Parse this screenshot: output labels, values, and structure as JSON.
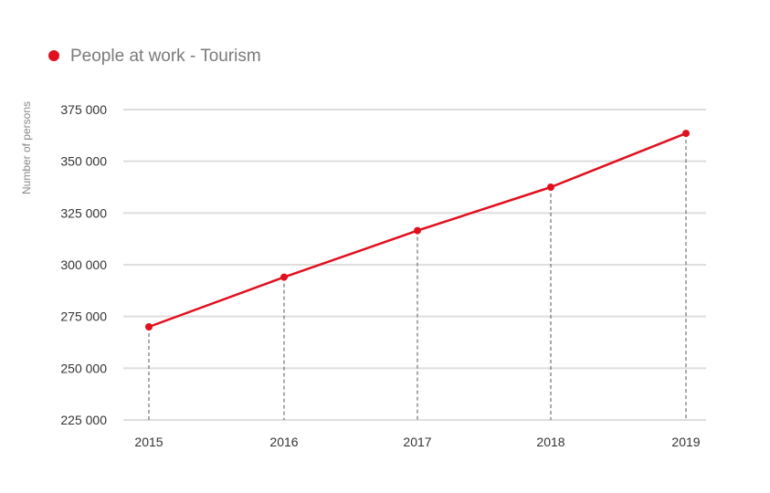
{
  "chart_data": {
    "type": "line",
    "title": "",
    "xlabel": "",
    "ylabel": "Number of persons",
    "categories": [
      "2015",
      "2016",
      "2017",
      "2018",
      "2019"
    ],
    "series": [
      {
        "name": "People at work - Tourism",
        "color": "#e0101e",
        "values": [
          270000,
          294000,
          316500,
          337500,
          363500
        ]
      }
    ],
    "ylim": [
      225000,
      375000
    ],
    "yticks": [
      {
        "value": 225000,
        "label": "225 000"
      },
      {
        "value": 250000,
        "label": "250 000"
      },
      {
        "value": 275000,
        "label": "275 000"
      },
      {
        "value": 300000,
        "label": "300 000"
      },
      {
        "value": 325000,
        "label": "325 000"
      },
      {
        "value": 350000,
        "label": "350 000"
      },
      {
        "value": 375000,
        "label": "375 000"
      }
    ],
    "grid": true,
    "drop_lines": true,
    "legend_position": "top-left"
  }
}
